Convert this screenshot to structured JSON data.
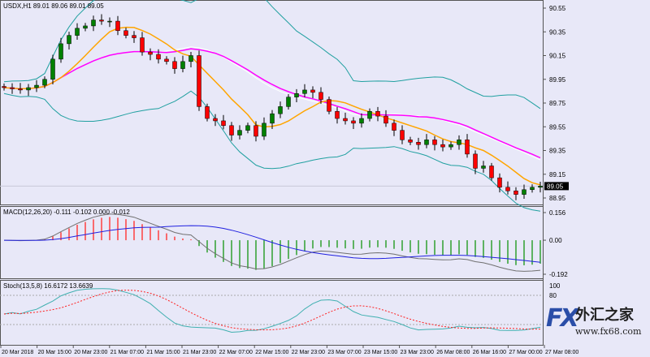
{
  "chart_data": [
    {
      "type": "candlestick",
      "title": "USDX,H1",
      "ohlc_header": [
        "89.01",
        "89.06",
        "89.01",
        "89.05"
      ],
      "current_price": "89.05",
      "y_ticks": [
        "90.55",
        "90.35",
        "90.15",
        "89.95",
        "89.75",
        "89.55",
        "89.35",
        "89.15",
        "88.95"
      ],
      "ylim": [
        88.93,
        90.6
      ],
      "closes": [
        89.88,
        89.87,
        89.86,
        89.88,
        89.9,
        89.95,
        90.12,
        90.25,
        90.32,
        90.38,
        90.4,
        90.45,
        90.44,
        90.44,
        90.36,
        90.32,
        90.3,
        90.18,
        90.16,
        90.12,
        90.1,
        90.04,
        90.1,
        90.15,
        89.72,
        89.62,
        89.6,
        89.56,
        89.48,
        89.52,
        89.56,
        89.47,
        89.58,
        89.66,
        89.72,
        89.8,
        89.83,
        89.86,
        89.84,
        89.78,
        89.68,
        89.62,
        89.6,
        89.58,
        89.62,
        89.68,
        89.64,
        89.58,
        89.52,
        89.44,
        89.42,
        89.4,
        89.44,
        89.4,
        89.38,
        89.4,
        89.44,
        89.32,
        89.2,
        89.22,
        89.12,
        89.04,
        89.01,
        88.98,
        89.02,
        89.04,
        89.05
      ],
      "indicators": {
        "ma_fast_period": 8,
        "ma_slow_period": 21,
        "bands_period": 20,
        "bands_dev": 2
      },
      "colors": {
        "bull": "#008000",
        "bear": "#ff0000",
        "ma_fast": "#ffa500",
        "ma_slow": "#ff00ff",
        "bands": "#20a0a0",
        "bands_mid": "#ffffff"
      }
    },
    {
      "type": "macd",
      "label": "MACD(12,26,20) -0.111 -0.102 0.000 -0.012",
      "y_ticks": [
        "0.156",
        "0.00",
        "-0.192"
      ],
      "ylim": [
        -0.192,
        0.156
      ],
      "params": [
        12,
        26,
        20
      ]
    },
    {
      "type": "stochastic",
      "label": "Stoch(13,5,8) 16.6172 13.6639",
      "y_ticks": [
        "100",
        "80"
      ],
      "ylim": [
        0,
        100
      ],
      "params": [
        13,
        5,
        8
      ]
    }
  ],
  "x_ticks": [
    "20 Mar 2018",
    "20 Mar 15:00",
    "20 Mar 23:00",
    "21 Mar 07:00",
    "21 Mar 15:00",
    "21 Mar 23:00",
    "22 Mar 07:00",
    "22 Mar 15:00",
    "22 Mar 23:00",
    "23 Mar 07:00",
    "23 Mar 15:00",
    "23 Mar 23:00",
    "26 Mar 08:00",
    "26 Mar 16:00",
    "27 Mar 00:00",
    "27 Mar 08:00"
  ],
  "watermark": {
    "brand": "FX",
    "name": "外汇之家",
    "url": "www.fx68.com"
  }
}
